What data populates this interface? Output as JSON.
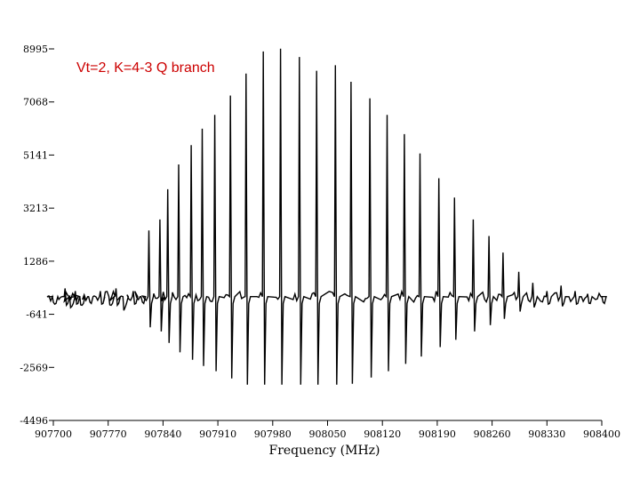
{
  "chart_data": {
    "type": "line",
    "title": "",
    "annotation": "Vt=2, K=4-3 Q branch",
    "xlabel": "Frequency (MHz)",
    "ylabel": "",
    "xlim": [
      907700,
      908400
    ],
    "ylim": [
      -4496,
      8995
    ],
    "x_ticks": [
      "907700",
      "907770",
      "907840",
      "907910",
      "907980",
      "908050",
      "908120",
      "908190",
      "908260",
      "908330",
      "908400"
    ],
    "y_ticks": [
      "8995",
      "7068",
      "5141",
      "3213",
      "1286",
      "-641",
      "-2569",
      "-4496"
    ],
    "colors": {
      "line": "#000000",
      "annotation": "#cc0000"
    },
    "series": [
      {
        "x": [
          907700,
          907715,
          907722,
          907728,
          907735,
          907745,
          907760,
          907772,
          907780,
          907790,
          907802,
          907812,
          907822,
          907836,
          907846,
          907860,
          907876,
          907890,
          907906,
          907926,
          907946,
          907968,
          907990,
          908014,
          908036,
          908060,
          908080,
          908104,
          908126,
          908148,
          908168,
          908192,
          908212,
          908236,
          908256,
          908274,
          908294,
          908312,
          908330,
          908348,
          908366,
          908382,
          908400
        ],
        "y": [
          -200,
          300,
          -400,
          200,
          -300,
          0,
          200,
          -300,
          300,
          -500,
          200,
          0,
          2400,
          2800,
          3900,
          4800,
          5500,
          6100,
          6600,
          7300,
          8100,
          8900,
          9000,
          8700,
          8200,
          8400,
          7800,
          7200,
          6600,
          5900,
          5200,
          4300,
          3600,
          2800,
          2200,
          1600,
          900,
          500,
          200,
          400,
          200,
          100,
          0
        ]
      }
    ]
  }
}
